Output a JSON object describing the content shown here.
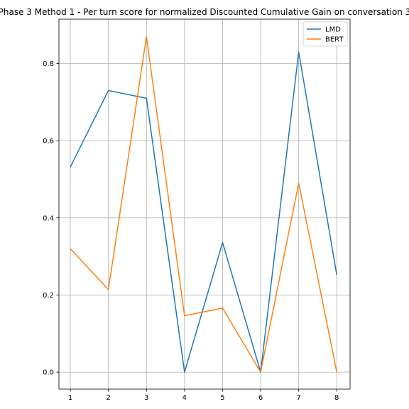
{
  "chart_data": {
    "type": "line",
    "title": "Phase 3 Method 1 - Per turn score for normalized Discounted Cumulative Gain on conversation 3",
    "xlabel": "",
    "ylabel": "",
    "x": [
      1,
      2,
      3,
      4,
      5,
      6,
      7,
      8
    ],
    "xticks": [
      "1",
      "2",
      "3",
      "4",
      "5",
      "6",
      "7",
      "8"
    ],
    "yticks": [
      "0.0",
      "0.2",
      "0.4",
      "0.6",
      "0.8"
    ],
    "xlim": [
      0.7,
      8.35
    ],
    "ylim": [
      -0.044,
      0.915
    ],
    "grid": true,
    "legend_position": "top-right",
    "series": [
      {
        "name": "LMD",
        "color": "#1f77b4",
        "values": [
          0.532,
          0.73,
          0.71,
          0.0,
          0.336,
          0.0,
          0.83,
          0.252
        ]
      },
      {
        "name": "BERT",
        "color": "#ff7f0e",
        "values": [
          0.32,
          0.214,
          0.87,
          0.146,
          0.166,
          0.0,
          0.49,
          0.0
        ]
      }
    ]
  }
}
